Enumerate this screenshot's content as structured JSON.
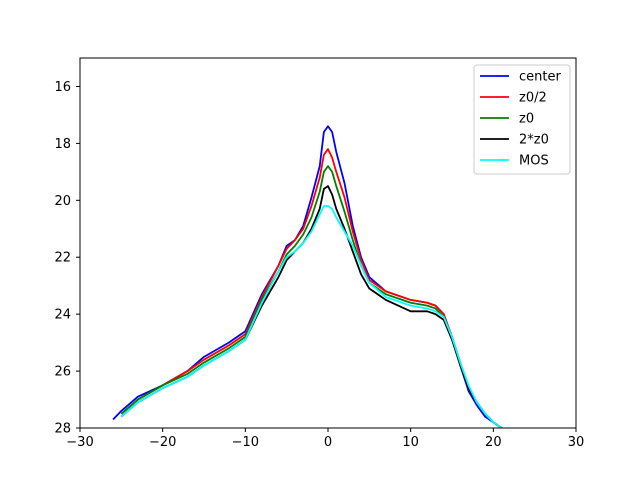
{
  "chart_data": {
    "type": "line",
    "title": "",
    "xlabel": "",
    "ylabel": "",
    "xlim": [
      -30,
      30
    ],
    "ylim": [
      28,
      15
    ],
    "y_inverted": true,
    "grid": false,
    "legend_position": "top-right",
    "xticks": [
      -30,
      -20,
      -10,
      0,
      10,
      20,
      30
    ],
    "yticks": [
      16,
      18,
      20,
      22,
      24,
      26,
      28
    ],
    "xtick_labels": [
      "−30",
      "−20",
      "−10",
      "0",
      "10",
      "20",
      "30"
    ],
    "ytick_labels": [
      "16",
      "18",
      "20",
      "22",
      "24",
      "26",
      "28"
    ],
    "series": [
      {
        "name": "center",
        "color": "#0000ff",
        "x": [
          -26,
          -25,
          -23,
          -20,
          -17,
          -15,
          -12,
          -10,
          -8,
          -6,
          -5,
          -4,
          -3,
          -2,
          -1,
          -0.5,
          0,
          0.5,
          1,
          2,
          3,
          4,
          5,
          7,
          10,
          12,
          13,
          14,
          15,
          16,
          17,
          18,
          19,
          20,
          21,
          22
        ],
        "values": [
          27.7,
          27.4,
          26.9,
          26.5,
          26.0,
          25.5,
          25.0,
          24.6,
          23.3,
          22.3,
          21.6,
          21.4,
          20.9,
          19.9,
          18.8,
          17.6,
          17.4,
          17.6,
          18.3,
          19.4,
          20.9,
          22.0,
          22.7,
          23.2,
          23.5,
          23.6,
          23.7,
          24.0,
          24.8,
          25.8,
          26.7,
          27.2,
          27.6,
          27.8,
          28.0,
          28.1
        ]
      },
      {
        "name": "z0/2",
        "color": "#ff0000",
        "x": [
          -25,
          -23,
          -20,
          -17,
          -15,
          -12,
          -10,
          -8,
          -6,
          -5,
          -4,
          -3,
          -2,
          -1,
          -0.5,
          0,
          0.5,
          1,
          2,
          3,
          4,
          5,
          7,
          10,
          12,
          13,
          14,
          15,
          16,
          17,
          18,
          19,
          20,
          21
        ],
        "values": [
          27.5,
          27.0,
          26.5,
          26.0,
          25.6,
          25.1,
          24.7,
          23.4,
          22.3,
          21.7,
          21.4,
          21.0,
          20.2,
          19.2,
          18.4,
          18.2,
          18.5,
          19.0,
          19.9,
          21.1,
          22.1,
          22.8,
          23.2,
          23.5,
          23.6,
          23.7,
          24.0,
          24.8,
          25.7,
          26.6,
          27.1,
          27.5,
          27.8,
          28.0
        ]
      },
      {
        "name": "z0",
        "color": "#008000",
        "x": [
          -25,
          -23,
          -20,
          -17,
          -15,
          -12,
          -10,
          -8,
          -6,
          -5,
          -4,
          -3,
          -2,
          -1,
          -0.5,
          0,
          0.5,
          1,
          2,
          3,
          4,
          5,
          7,
          10,
          12,
          13,
          14,
          15,
          16,
          17,
          18,
          19,
          20,
          21
        ],
        "values": [
          27.5,
          27.0,
          26.5,
          26.1,
          25.7,
          25.2,
          24.8,
          23.5,
          22.5,
          21.9,
          21.6,
          21.2,
          20.6,
          19.7,
          19.0,
          18.8,
          19.0,
          19.5,
          20.4,
          21.4,
          22.3,
          22.9,
          23.3,
          23.6,
          23.7,
          23.8,
          24.1,
          24.8,
          25.7,
          26.6,
          27.1,
          27.5,
          27.8,
          28.0
        ]
      },
      {
        "name": "2*z0",
        "color": "#000000",
        "x": [
          -25,
          -23,
          -20,
          -17,
          -15,
          -12,
          -10,
          -8,
          -6,
          -5,
          -4,
          -3,
          -2,
          -1,
          -0.5,
          0,
          0.5,
          1,
          2,
          3,
          4,
          5,
          7,
          10,
          12,
          13,
          14,
          15,
          16,
          17,
          18,
          19,
          20,
          21
        ],
        "values": [
          27.6,
          27.1,
          26.6,
          26.2,
          25.8,
          25.3,
          24.9,
          23.7,
          22.7,
          22.1,
          21.8,
          21.5,
          21.0,
          20.3,
          19.6,
          19.5,
          19.8,
          20.3,
          21.0,
          21.8,
          22.6,
          23.1,
          23.5,
          23.9,
          23.9,
          24.0,
          24.2,
          24.9,
          25.8,
          26.6,
          27.1,
          27.5,
          27.8,
          28.0
        ]
      },
      {
        "name": "MOS",
        "color": "#00ffff",
        "x": [
          -25,
          -23,
          -20,
          -17,
          -15,
          -12,
          -10,
          -8,
          -6,
          -5,
          -4,
          -3,
          -2,
          -1,
          -0.5,
          0,
          0.5,
          1,
          2,
          3,
          4,
          5,
          7,
          10,
          12,
          13,
          14,
          15,
          16,
          17,
          18,
          19,
          20,
          21
        ],
        "values": [
          27.6,
          27.1,
          26.6,
          26.2,
          25.8,
          25.3,
          24.9,
          23.6,
          22.5,
          22.0,
          21.8,
          21.5,
          21.1,
          20.5,
          20.2,
          20.2,
          20.3,
          20.6,
          21.1,
          21.6,
          22.3,
          22.9,
          23.4,
          23.7,
          23.8,
          23.9,
          24.1,
          24.8,
          25.7,
          26.5,
          27.1,
          27.5,
          27.8,
          28.0
        ]
      }
    ]
  }
}
